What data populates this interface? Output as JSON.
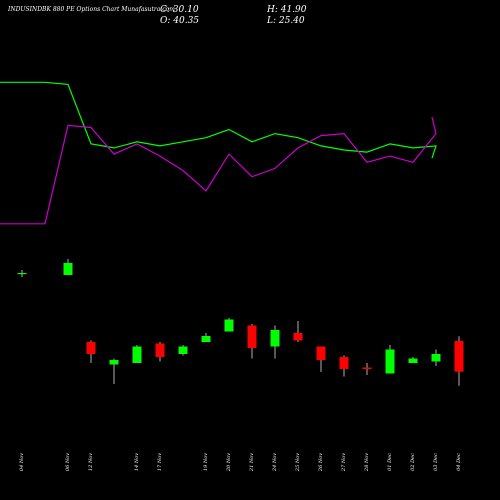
{
  "header": {
    "title": "INDUSINDBK 880 PE Options Chart Munafasutra.com",
    "close_text": "C: 30.10",
    "open_text": "O: 40.35",
    "high_text": "H: 41.90",
    "low_text": "L: 25.40"
  },
  "colors": {
    "up": "#00ff00",
    "down": "#ff0000",
    "line1": "#00ff00",
    "line2": "#cc00cc",
    "background": "#000000"
  },
  "chart_data": {
    "type": "candlestick",
    "categories": [
      "04 Nov",
      "05 Nov",
      "06 Nov",
      "12 Nov",
      "13 Nov",
      "14 Nov",
      "17 Nov",
      "18 Nov",
      "19 Nov",
      "20 Nov",
      "21 Nov",
      "24 Nov",
      "25 Nov",
      "26 Nov",
      "27 Nov",
      "28 Nov",
      "01 Dec",
      "02 Dec",
      "03 Dec",
      "04 Dec"
    ],
    "x_tick_labels": [
      "04 Nov",
      "06 Nov",
      "12 Nov",
      "14 Nov",
      "17 Nov",
      "19 Nov",
      "20 Nov",
      "21 Nov",
      "24 Nov",
      "25 Nov",
      "26 Nov",
      "27 Nov",
      "28 Nov",
      "01 Dec",
      "02 Dec",
      "03 Dec",
      "04 Dec"
    ],
    "candles": [
      {
        "date": "04 Nov",
        "open": null,
        "high": null,
        "low": null,
        "close": null
      },
      {
        "date": "05 Nov",
        "open": null,
        "high": null,
        "low": null,
        "close": null
      },
      {
        "date": "06 Nov",
        "open": null,
        "high": null,
        "low": null,
        "close": null
      },
      {
        "date": "12 Nov",
        "open": 40.0,
        "high": 40.5,
        "low": 33.0,
        "close": 36.0
      },
      {
        "date": "13 Nov",
        "open": 32.5,
        "high": 34.5,
        "low": 26.0,
        "close": 34.0
      },
      {
        "date": "14 Nov",
        "open": 33.0,
        "high": 39.0,
        "low": 33.0,
        "close": 38.5
      },
      {
        "date": "17 Nov",
        "open": 39.5,
        "high": 40.0,
        "low": 33.5,
        "close": 35.0
      },
      {
        "date": "18 Nov",
        "open": 36.0,
        "high": 39.0,
        "low": 35.5,
        "close": 38.5
      },
      {
        "date": "19 Nov",
        "open": 40.0,
        "high": 43.0,
        "low": 40.0,
        "close": 42.0
      },
      {
        "date": "20 Nov",
        "open": 43.5,
        "high": 48.0,
        "low": 43.5,
        "close": 47.5
      },
      {
        "date": "21 Nov",
        "open": 45.5,
        "high": 46.0,
        "low": 34.5,
        "close": 38.0
      },
      {
        "date": "24 Nov",
        "open": 38.5,
        "high": 45.5,
        "low": 34.5,
        "close": 44.0
      },
      {
        "date": "25 Nov",
        "open": 43.0,
        "high": 47.0,
        "low": 40.0,
        "close": 40.5
      },
      {
        "date": "26 Nov",
        "open": 38.5,
        "high": 38.5,
        "low": 30.0,
        "close": 34.0
      },
      {
        "date": "27 Nov",
        "open": 35.0,
        "high": 35.5,
        "low": 28.5,
        "close": 31.0
      },
      {
        "date": "28 Nov",
        "open": 31.5,
        "high": 33.0,
        "low": 29.0,
        "close": 31.0
      },
      {
        "date": "01 Dec",
        "open": 29.5,
        "high": 39.0,
        "low": 29.5,
        "close": 37.5
      },
      {
        "date": "02 Dec",
        "open": 33.0,
        "high": 35.0,
        "low": 33.0,
        "close": 34.5
      },
      {
        "date": "03 Dec",
        "open": 33.5,
        "high": 37.5,
        "low": 32.0,
        "close": 36.0
      },
      {
        "date": "04 Dec",
        "open": 40.35,
        "high": 41.9,
        "low": 25.4,
        "close": 30.1
      }
    ],
    "extra_candles_upper": [
      {
        "date": "04 Nov",
        "open": 20.0,
        "high": 20.6,
        "low": 19.2,
        "close": 20.0
      },
      {
        "date": "06 Nov",
        "open": 19.6,
        "high": 22.8,
        "low": 19.6,
        "close": 22.0
      }
    ],
    "series": [
      {
        "values": [
          73,
          73,
          72,
          43,
          41,
          44,
          42,
          44,
          46,
          50,
          44,
          48,
          46,
          42,
          40,
          39,
          43,
          41,
          42,
          36
        ]
      },
      {
        "values": [
          4,
          4,
          52,
          51,
          38,
          43,
          37,
          30,
          20,
          38,
          27,
          31,
          41,
          47,
          48,
          34,
          37,
          34,
          48,
          56
        ]
      }
    ]
  }
}
